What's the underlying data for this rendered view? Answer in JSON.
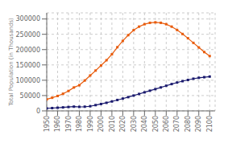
{
  "chart_data": {
    "type": "line",
    "ylabel": "Total Population (in Thousands)",
    "x": [
      1950,
      1955,
      1960,
      1965,
      1970,
      1975,
      1980,
      1985,
      1990,
      1995,
      2000,
      2005,
      2010,
      2015,
      2020,
      2025,
      2030,
      2035,
      2040,
      2045,
      2050,
      2055,
      2060,
      2065,
      2070,
      2075,
      2080,
      2085,
      2090,
      2095,
      2100
    ],
    "series": [
      {
        "color": "#e85c0d",
        "values": [
          37542,
          42880,
          48663,
          55840,
          64980,
          76330,
          83780,
          99163,
          115534,
          131600,
          148241,
          165352,
          184753,
          207774,
          228400,
          247200,
          263400,
          275000,
          283000,
          287500,
          289000,
          287500,
          283000,
          275000,
          264000,
          251000,
          237000,
          222000,
          207000,
          192000,
          179000
        ]
      },
      {
        "color": "#1a1a6e",
        "values": [
          8151,
          9148,
          10231,
          11351,
          12533,
          13835,
          13051,
          13648,
          15090,
          18834,
          22472,
          26366,
          30720,
          35530,
          40100,
          44900,
          50000,
          55200,
          60500,
          65800,
          71000,
          76500,
          82000,
          87500,
          92500,
          97000,
          101000,
          105000,
          108000,
          110000,
          112000
        ]
      }
    ],
    "xlim": [
      1950,
      2105
    ],
    "ylim": [
      0,
      320000
    ],
    "xticks": [
      1950,
      1960,
      1970,
      1980,
      1990,
      2000,
      2010,
      2020,
      2030,
      2040,
      2050,
      2060,
      2070,
      2080,
      2090,
      2100
    ],
    "yticks": [
      0,
      50000,
      100000,
      150000,
      200000,
      250000,
      300000
    ],
    "grid": true,
    "marker": "square"
  }
}
